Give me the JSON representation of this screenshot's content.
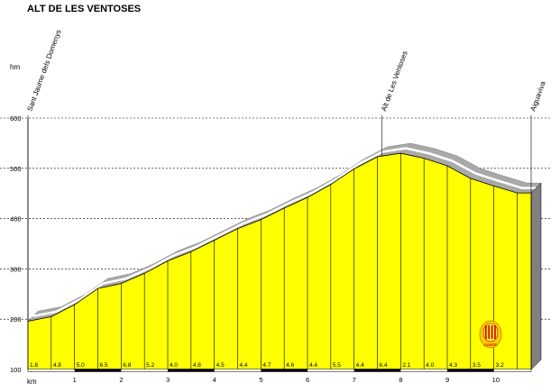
{
  "chart_data": {
    "type": "area",
    "title": "ALT DE LES VENTOSES",
    "ylabel": "hm",
    "xlabel": "km",
    "ylim": [
      100,
      600
    ],
    "xlim": [
      0,
      10.8
    ],
    "yticks": [
      100,
      200,
      300,
      400,
      500,
      600
    ],
    "xticks": [
      1,
      2,
      3,
      4,
      5,
      6,
      7,
      8,
      9,
      10
    ],
    "grid": true,
    "segment_gradients": [
      "1.8",
      "4.8",
      "5.0",
      "6.5",
      "6.8",
      "5.2",
      "4.0",
      "4.8",
      "4.5",
      "4.4",
      "4.7",
      "4.6",
      "4.4",
      "5.5",
      "4.4",
      "6.4",
      "2.1",
      "4.0",
      "4.3",
      "3.5",
      "3.2"
    ],
    "profile": {
      "x": [
        0,
        0.5,
        1,
        1.5,
        2,
        2.5,
        3,
        3.5,
        4,
        4.5,
        5,
        5.5,
        6,
        6.5,
        7,
        7.5,
        8,
        8.5,
        9,
        9.5,
        10,
        10.5,
        10.8
      ],
      "y": [
        196,
        205,
        229,
        261,
        271,
        291,
        316,
        334,
        357,
        380,
        398,
        421,
        442,
        468,
        499,
        523,
        530,
        520,
        505,
        480,
        465,
        451,
        451
      ]
    },
    "locations": [
      {
        "km": 0.0,
        "name": "Sant Jaume dels Domenys"
      },
      {
        "km": 7.6,
        "name": "Alt de Les Ventoses"
      },
      {
        "km": 10.8,
        "name": "Aiguaviva"
      }
    ],
    "colors": {
      "fill": "#ffff00",
      "stroke": "#000000",
      "shadow": "#a9a9a9",
      "side": "#808080",
      "road": "#c8c8c8"
    },
    "logo": {
      "text": "CONTE",
      "icon": "emblem-logo-icon"
    }
  }
}
